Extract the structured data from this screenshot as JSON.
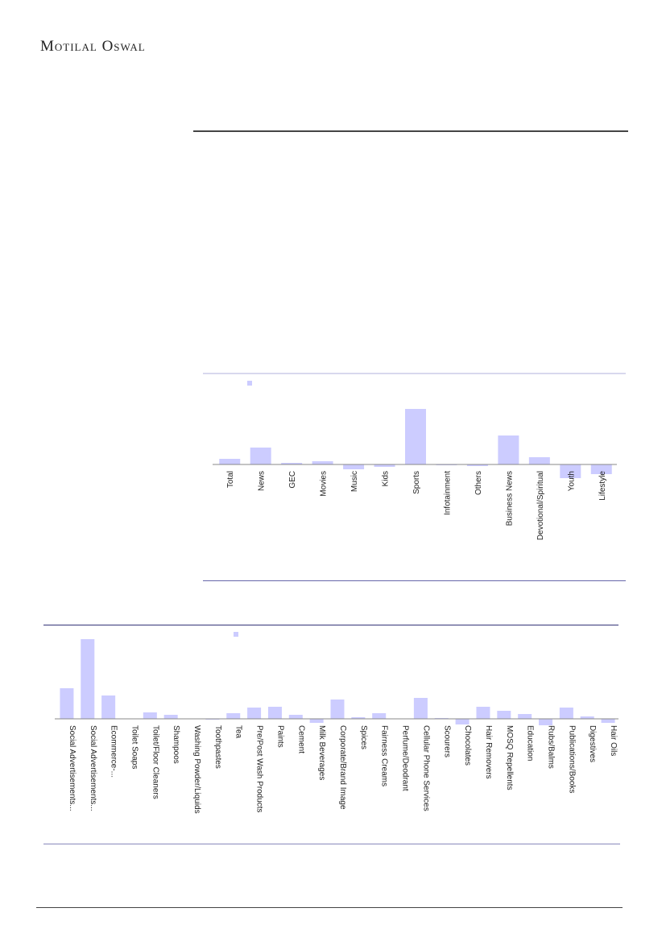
{
  "header": {
    "logo": "Motilal Oswal"
  },
  "colors": {
    "bar": "#ccccff",
    "axis": "#888888",
    "frame_light": "#d8d8ee",
    "frame_dark": "#333377"
  },
  "chart_data": [
    {
      "type": "bar",
      "title": "",
      "xlabel": "",
      "ylabel": "",
      "categories": [
        "Total",
        "News",
        "GEC",
        "Movies",
        "Music",
        "Kids",
        "Sports",
        "Infotainment",
        "Others",
        "Business News",
        "Devotional/Spiritual",
        "Youth",
        "Lifestyle"
      ],
      "values": [
        7,
        21,
        2,
        4,
        -6,
        -3,
        69,
        -1,
        -2,
        36,
        9,
        -17,
        -12
      ],
      "ylim": [
        -25,
        110
      ],
      "grid": false,
      "legend": "top-left"
    },
    {
      "type": "bar",
      "title": "",
      "xlabel": "",
      "ylabel": "",
      "categories": [
        "Social Advertisements...",
        "Social Advertisements...",
        "Ecommerce-...",
        "Toilet Soaps",
        "Toilet/Floor Cleaners",
        "Shampoos",
        "Washing Powder/Liquids",
        "Toothpastes",
        "Tea",
        "Pre/Post Wash Products",
        "Paints",
        "Cement",
        "Milk Beverages",
        "Corporate/Brand Image",
        "Spices",
        "Fairness Creams",
        "Perfume/Deodrant",
        "Cellular Phone Services",
        "Scourers",
        "Chocolates",
        "Hair Removers",
        "MOSQ Repellents",
        "Education",
        "Rubs/Balms",
        "Publications/Books",
        "Digestives",
        "Hair Oils"
      ],
      "values": [
        38,
        99,
        29,
        0,
        8,
        5,
        0,
        -1,
        7,
        14,
        15,
        5,
        -5,
        24,
        2,
        7,
        0,
        26,
        1,
        -7,
        15,
        10,
        6,
        -8,
        14,
        3,
        -5
      ],
      "ylim": [
        -15,
        115
      ],
      "grid": false,
      "legend": "top-center"
    }
  ]
}
